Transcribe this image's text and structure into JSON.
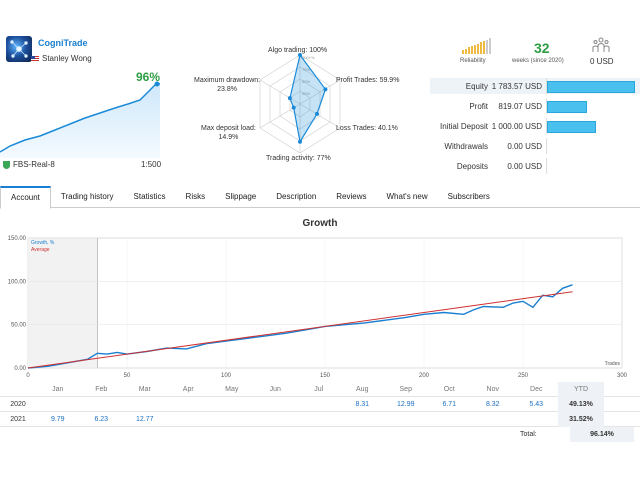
{
  "signal": {
    "name": "CogniTrade",
    "author": "Stanley Wong",
    "growth": "96%",
    "server": "FBS-Real-8",
    "leverage": "1:500"
  },
  "radar": {
    "algo": "Algo trading: 100%",
    "profit_trades": "Profit Trades: 59.9%",
    "loss_trades": "Loss Trades: 40.1%",
    "trading_activity": "Trading activity: 77%",
    "max_deposit_load_1": "Max deposit load:",
    "max_deposit_load_2": "14.9%",
    "max_drawdown_1": "Maximum drawdown:",
    "max_drawdown_2": "23.8%",
    "ring_labels": [
      "100+%",
      "75%",
      "50%",
      "25%"
    ],
    "levels": {
      "algo": 1.0,
      "profit": 0.599,
      "loss": 0.401,
      "activity": 0.77,
      "load": 0.149,
      "drawdown": 0.238
    }
  },
  "summary": {
    "reliability_label": "Reliability",
    "reliability_level": 0.8,
    "weeks": "32",
    "weeks_label": "weeks (since 2020)",
    "subscribers": "0 USD"
  },
  "financials": [
    {
      "label": "Equity",
      "value": "1 783.57 USD",
      "fill": 1.0
    },
    {
      "label": "Profit",
      "value": "819.07 USD",
      "fill": 0.46
    },
    {
      "label": "Initial Deposit",
      "value": "1 000.00 USD",
      "fill": 0.56
    },
    {
      "label": "Withdrawals",
      "value": "0.00 USD",
      "fill": 0
    },
    {
      "label": "Deposits",
      "value": "0.00 USD",
      "fill": 0
    }
  ],
  "tabs": [
    "Account",
    "Trading history",
    "Statistics",
    "Risks",
    "Slippage",
    "Description",
    "Reviews",
    "What's new",
    "Subscribers"
  ],
  "chart_data": {
    "type": "line",
    "title": "Growth",
    "xlabel": "Trades",
    "xlim": [
      0,
      300
    ],
    "ylim": [
      0,
      150
    ],
    "x_ticks": [
      "0",
      "50",
      "100",
      "150",
      "200",
      "250",
      "300"
    ],
    "y_ticks": [
      "0.00",
      "50.00",
      "100.00",
      "150.00"
    ],
    "grid": true,
    "legend_position": "top-left",
    "series": [
      {
        "name": "Growth, %",
        "color": "#1a7fd0",
        "x": [
          0,
          10,
          20,
          30,
          35,
          40,
          45,
          50,
          60,
          70,
          80,
          90,
          100,
          110,
          120,
          130,
          140,
          150,
          160,
          170,
          180,
          190,
          200,
          210,
          220,
          225,
          230,
          240,
          245,
          250,
          255,
          260,
          265,
          270,
          275
        ],
        "y": [
          0,
          2,
          6,
          10,
          17,
          16,
          18,
          16,
          19,
          23,
          22,
          28,
          31,
          34,
          37,
          40,
          44,
          48,
          50,
          52,
          55,
          58,
          62,
          64,
          62,
          67,
          71,
          70,
          75,
          77,
          70,
          84,
          82,
          92,
          96
        ]
      },
      {
        "name": "Average",
        "color": "#d03030",
        "x": [
          0,
          275
        ],
        "y": [
          0,
          88
        ]
      }
    ]
  },
  "table": {
    "months": [
      "Jan",
      "Feb",
      "Mar",
      "Apr",
      "May",
      "Jun",
      "Jul",
      "Aug",
      "Sep",
      "Oct",
      "Nov",
      "Dec"
    ],
    "ytd_label": "YTD",
    "rows": [
      {
        "year": "2020",
        "values": [
          "",
          "",
          "",
          "",
          "",
          "",
          "",
          "8.31",
          "12.99",
          "6.71",
          "8.32",
          "5.43"
        ],
        "ytd": "49.13%"
      },
      {
        "year": "2021",
        "values": [
          "9.79",
          "6.23",
          "12.77",
          "",
          "",
          "",
          "",
          "",
          "",
          "",
          "",
          ""
        ],
        "ytd": "31.52%"
      }
    ],
    "total_label": "Total:",
    "total_value": "96.14%"
  }
}
